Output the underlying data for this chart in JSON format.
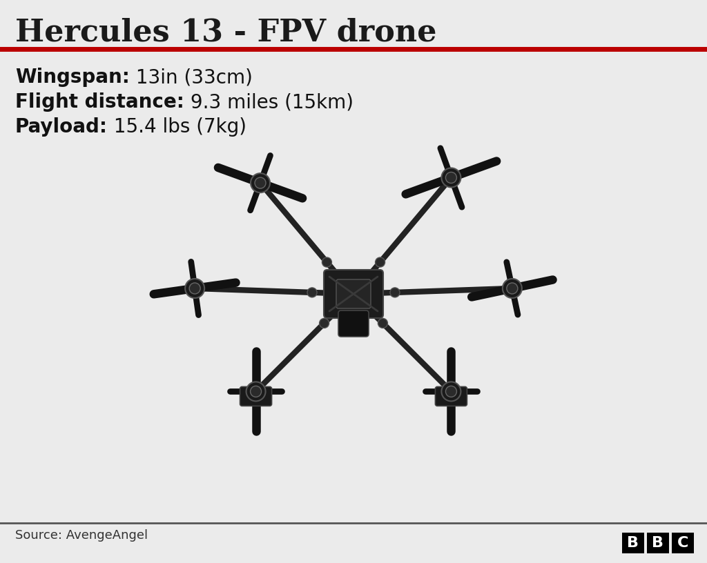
{
  "title": "Hercules 13 - FPV drone",
  "title_fontsize": 32,
  "title_color": "#1a1a1a",
  "background_color": "#ebebeb",
  "red_line_color": "#bb0000",
  "specs": [
    {
      "bold": "Wingspan:",
      "normal": " 13in (33cm)"
    },
    {
      "bold": "Flight distance:",
      "normal": " 9.3 miles (15km)"
    },
    {
      "bold": "Payload:",
      "normal": " 15.4 lbs (7kg)"
    }
  ],
  "spec_fontsize": 20,
  "spec_color": "#111111",
  "source_text": "Source: AvengeAngel",
  "source_fontsize": 13,
  "source_color": "#333333",
  "footer_line_color": "#555555",
  "bbc_box_color": "#000000",
  "bbc_text_color": "#ffffff",
  "bbc_fontsize": 16,
  "drone_color": "#1a1a1a",
  "drone_arm_color": "#222222",
  "drone_prop_color": "#111111"
}
